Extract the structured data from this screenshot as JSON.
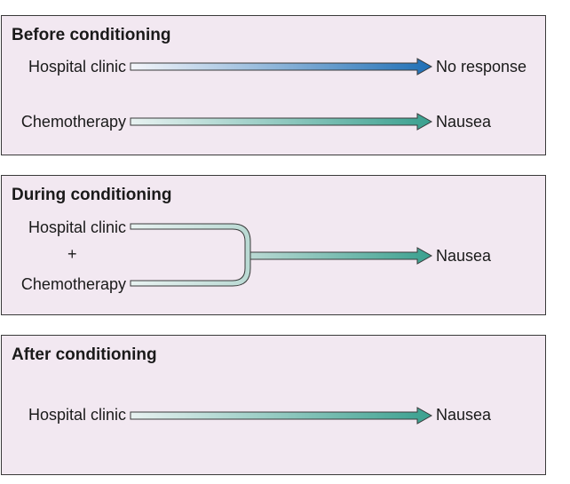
{
  "panels": [
    {
      "title": "Before conditioning",
      "rows": [
        {
          "from": "Hospital clinic",
          "to": "No response",
          "colors": [
            "#f4f6fa",
            "#1f6fb6"
          ]
        },
        {
          "from": "Chemotherapy",
          "to": "Nausea",
          "colors": [
            "#e8f2f1",
            "#3aa08f"
          ]
        }
      ]
    },
    {
      "title": "During conditioning",
      "from_top": "Hospital clinic",
      "plus": "+",
      "from_bottom": "Chemotherapy",
      "to": "Nausea",
      "colors": [
        "#e8f2f1",
        "#3aa08f"
      ]
    },
    {
      "title": "After conditioning",
      "rows": [
        {
          "from": "Hospital clinic",
          "to": "Nausea",
          "colors": [
            "#e8f2f1",
            "#3aa08f"
          ]
        }
      ]
    }
  ]
}
